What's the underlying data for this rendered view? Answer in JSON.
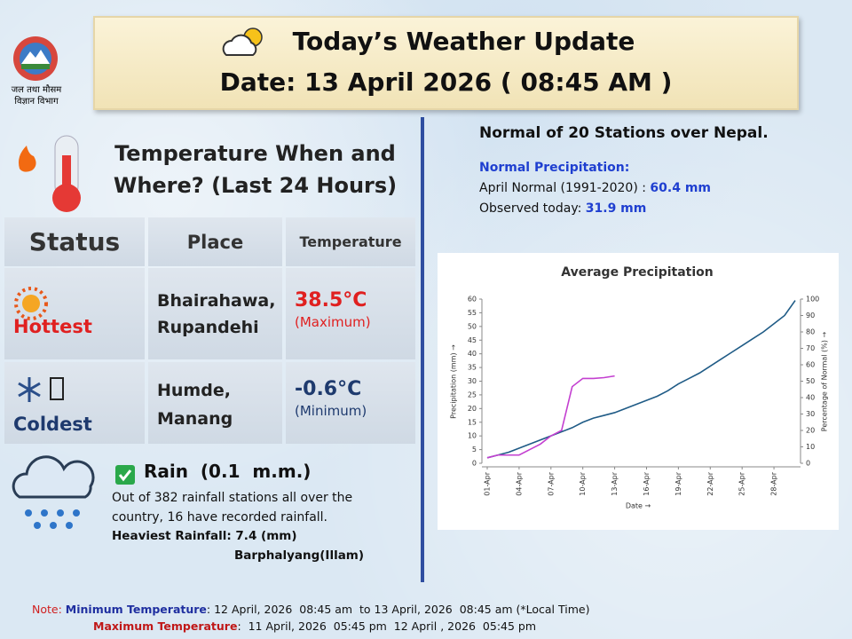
{
  "header": {
    "title": "Today’s Weather Update",
    "date": "Date: 13 April 2026  ( 08:45 AM )"
  },
  "logo": {
    "line1": "जल तथा मौसम",
    "line2": "विज्ञान विभाग"
  },
  "temperature": {
    "heading": "Temperature When and Where?  (Last 24 Hours)",
    "table": {
      "header": [
        "Status",
        "Place",
        "Temperature"
      ],
      "rows": [
        {
          "status": "Hottest",
          "place_1": "Bhairahawa,",
          "place_2": "Rupandehi",
          "value": "38.5°C",
          "kind": "(Maximum)"
        },
        {
          "status": "Coldest",
          "place_1": "Humde,",
          "place_2": "Manang",
          "value": "-0.6°C",
          "kind": "(Minimum)"
        }
      ]
    }
  },
  "rain": {
    "title": "Rain  (0.1  m.m.)",
    "text": "Out of 382 rainfall stations all over the country, 16 have recorded rainfall.",
    "heaviest": "Heaviest Rainfall: 7.4 (mm)",
    "station": "Barphalyang(Illam)"
  },
  "normal": {
    "heading": "Normal of 20 Stations over Nepal.",
    "label": "Normal Precipitation:",
    "april_label": "April Normal (1991-2020) : ",
    "april_value": "60.4 mm",
    "observed_label": "Observed today: ",
    "observed_value": "31.9 mm"
  },
  "chart_data": {
    "type": "line",
    "title": "Average Precipitation",
    "x_label": "Date →",
    "y_label": "Precipitation (mm) →",
    "y2_label": "Percentage of Normal (%) →",
    "categories": [
      "01-Apr",
      null,
      null,
      "04-Apr",
      null,
      null,
      "07-Apr",
      null,
      null,
      "10-Apr",
      null,
      null,
      "13-Apr",
      null,
      null,
      "16-Apr",
      null,
      null,
      "19-Apr",
      null,
      null,
      "22-Apr",
      null,
      null,
      "25-Apr",
      null,
      null,
      "28-Apr",
      null,
      null
    ],
    "series": [
      {
        "color": "#1f5b86",
        "values": [
          2,
          3,
          4,
          5.5,
          7,
          8.5,
          10,
          11.5,
          13,
          15,
          16.5,
          17.5,
          18.5,
          20,
          21.5,
          23,
          24.5,
          26.5,
          29,
          31,
          33,
          35.5,
          38,
          40.5,
          43,
          45.5,
          48,
          51,
          54,
          59.5
        ]
      },
      {
        "color": "#c33fd0",
        "values": [
          2,
          3,
          3,
          3,
          5,
          7,
          10,
          12,
          28,
          31,
          31,
          31.3,
          31.9,
          null,
          null,
          null,
          null,
          null,
          null,
          null,
          null,
          null,
          null,
          null,
          null,
          null,
          null,
          null,
          null,
          null
        ]
      }
    ],
    "ylim": [
      0,
      60
    ],
    "yticks": [
      0,
      5,
      10,
      15,
      20,
      25,
      30,
      35,
      40,
      45,
      50,
      55,
      60
    ],
    "y2lim": [
      0,
      100
    ],
    "y2ticks": [
      0,
      10,
      20,
      30,
      40,
      50,
      60,
      70,
      80,
      90,
      100
    ],
    "grid": false
  },
  "notes": {
    "prefix": "Note: ",
    "min_label": "Minimum Temperature",
    "min_text": ": 12 April, 2026  08:45 am  to 13 April, 2026  08:45 am (*Local Time)",
    "max_label": "Maximum Temperature",
    "max_text": ":  11 April, 2026  05:45 pm  12 April , 2026  05:45 pm"
  }
}
